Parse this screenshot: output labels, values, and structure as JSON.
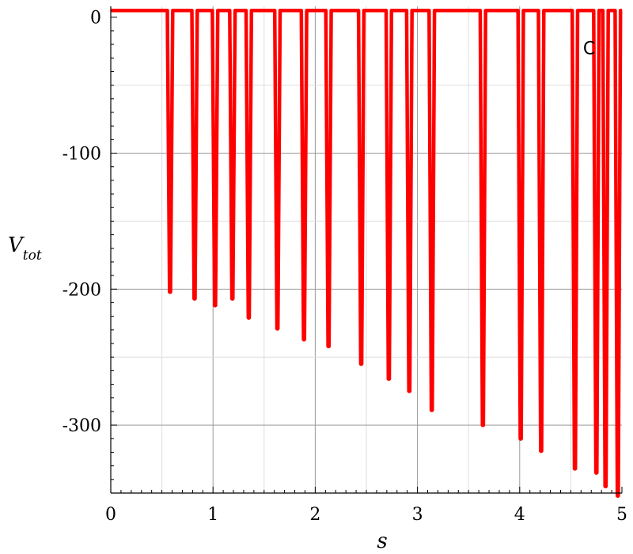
{
  "chart_data": {
    "type": "line",
    "title": "",
    "xlabel": "s",
    "ylabel": {
      "main": "V",
      "sub": "tot"
    },
    "annotation": "C",
    "xlim": [
      0,
      5
    ],
    "ylim": [
      -350,
      8
    ],
    "x_ticks": [
      0,
      1,
      2,
      3,
      4,
      5
    ],
    "y_ticks": [
      0,
      -100,
      -200,
      -300
    ],
    "x_tick_labels": [
      "0",
      "1",
      "2",
      "3",
      "4",
      "5"
    ],
    "y_tick_labels": [
      "0",
      "-100",
      "-200",
      "-300"
    ],
    "grid": true,
    "legend": "none",
    "series": [
      {
        "color": "#ff0000",
        "baseline": 5,
        "troughs": [
          {
            "x": 0.58,
            "y": -202
          },
          {
            "x": 0.82,
            "y": -207
          },
          {
            "x": 1.02,
            "y": -212
          },
          {
            "x": 1.19,
            "y": -207
          },
          {
            "x": 1.35,
            "y": -221
          },
          {
            "x": 1.63,
            "y": -229
          },
          {
            "x": 1.89,
            "y": -237
          },
          {
            "x": 2.13,
            "y": -242
          },
          {
            "x": 2.45,
            "y": -255
          },
          {
            "x": 2.72,
            "y": -266
          },
          {
            "x": 2.92,
            "y": -275
          },
          {
            "x": 3.14,
            "y": -289
          },
          {
            "x": 3.64,
            "y": -300
          },
          {
            "x": 4.01,
            "y": -310
          },
          {
            "x": 4.21,
            "y": -319
          },
          {
            "x": 4.54,
            "y": -332
          },
          {
            "x": 4.75,
            "y": -335
          },
          {
            "x": 4.84,
            "y": -345
          },
          {
            "x": 4.96,
            "y": -352
          }
        ]
      }
    ]
  }
}
